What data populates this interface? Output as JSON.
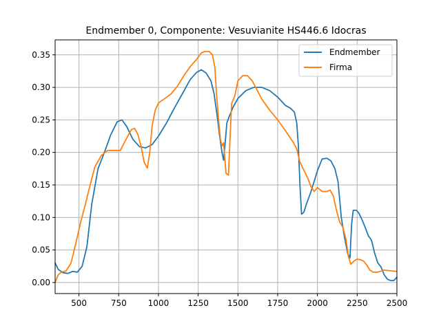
{
  "chart_data": {
    "type": "line",
    "title": "Endmember 0, Componente: Vesuvianite HS446.6  Idocras",
    "xlabel": "",
    "ylabel": "",
    "xlim": [
      350,
      2500
    ],
    "ylim": [
      -0.017,
      0.373
    ],
    "xticks": [
      500,
      750,
      1000,
      1250,
      1500,
      1750,
      2000,
      2250,
      2500
    ],
    "yticks": [
      0.0,
      0.05,
      0.1,
      0.15,
      0.2,
      0.25,
      0.3,
      0.35
    ],
    "xtick_labels": [
      "500",
      "750",
      "1000",
      "1250",
      "1500",
      "1750",
      "2000",
      "2250",
      "2500"
    ],
    "ytick_labels": [
      "0.00",
      "0.05",
      "0.10",
      "0.15",
      "0.20",
      "0.25",
      "0.30",
      "0.35"
    ],
    "grid": true,
    "legend_position": "top-right",
    "series": [
      {
        "name": "Endmember",
        "color": "#1f77b4",
        "x": [
          350,
          370,
          400,
          430,
          460,
          490,
          520,
          550,
          580,
          620,
          660,
          700,
          740,
          770,
          800,
          840,
          880,
          920,
          960,
          1000,
          1050,
          1100,
          1150,
          1200,
          1240,
          1270,
          1300,
          1330,
          1350,
          1370,
          1385,
          1400,
          1410,
          1420,
          1430,
          1445,
          1470,
          1500,
          1550,
          1600,
          1650,
          1700,
          1750,
          1800,
          1830,
          1855,
          1870,
          1880,
          1890,
          1900,
          1915,
          1930,
          1960,
          2000,
          2030,
          2060,
          2085,
          2110,
          2130,
          2150,
          2170,
          2190,
          2205,
          2215,
          2225,
          2245,
          2260,
          2280,
          2300,
          2320,
          2340,
          2360,
          2380,
          2400,
          2420,
          2440,
          2460,
          2480,
          2500
        ],
        "y": [
          0.03,
          0.02,
          0.015,
          0.014,
          0.017,
          0.016,
          0.025,
          0.055,
          0.12,
          0.175,
          0.2,
          0.227,
          0.247,
          0.25,
          0.24,
          0.22,
          0.209,
          0.207,
          0.212,
          0.225,
          0.245,
          0.268,
          0.29,
          0.312,
          0.323,
          0.327,
          0.322,
          0.31,
          0.29,
          0.255,
          0.225,
          0.2,
          0.188,
          0.215,
          0.245,
          0.255,
          0.27,
          0.283,
          0.295,
          0.3,
          0.3,
          0.295,
          0.285,
          0.272,
          0.268,
          0.262,
          0.245,
          0.21,
          0.15,
          0.105,
          0.108,
          0.12,
          0.14,
          0.172,
          0.19,
          0.191,
          0.187,
          0.175,
          0.155,
          0.1,
          0.07,
          0.045,
          0.038,
          0.09,
          0.111,
          0.111,
          0.107,
          0.097,
          0.085,
          0.072,
          0.065,
          0.045,
          0.03,
          0.024,
          0.012,
          0.005,
          0.003,
          0.003,
          0.008
        ]
      },
      {
        "name": "Firma",
        "color": "#ff7f0e",
        "x": [
          350,
          370,
          390,
          420,
          450,
          480,
          510,
          540,
          570,
          600,
          640,
          680,
          720,
          760,
          800,
          830,
          850,
          870,
          890,
          910,
          930,
          945,
          960,
          980,
          1000,
          1040,
          1080,
          1120,
          1160,
          1200,
          1240,
          1270,
          1290,
          1320,
          1340,
          1355,
          1365,
          1380,
          1390,
          1400,
          1410,
          1425,
          1440,
          1460,
          1480,
          1500,
          1530,
          1560,
          1590,
          1620,
          1650,
          1700,
          1750,
          1800,
          1830,
          1850,
          1870,
          1890,
          1910,
          1940,
          1960,
          1980,
          2000,
          2030,
          2060,
          2080,
          2100,
          2120,
          2140,
          2160,
          2180,
          2195,
          2210,
          2230,
          2250,
          2270,
          2290,
          2310,
          2330,
          2350,
          2380,
          2420,
          2460,
          2500
        ],
        "y": [
          0.0,
          0.012,
          0.016,
          0.018,
          0.03,
          0.06,
          0.092,
          0.12,
          0.15,
          0.178,
          0.195,
          0.203,
          0.203,
          0.203,
          0.222,
          0.235,
          0.237,
          0.228,
          0.21,
          0.185,
          0.176,
          0.2,
          0.24,
          0.265,
          0.276,
          0.283,
          0.29,
          0.302,
          0.318,
          0.332,
          0.343,
          0.353,
          0.355,
          0.355,
          0.35,
          0.33,
          0.29,
          0.245,
          0.22,
          0.21,
          0.215,
          0.168,
          0.165,
          0.275,
          0.287,
          0.31,
          0.318,
          0.318,
          0.31,
          0.296,
          0.282,
          0.265,
          0.25,
          0.233,
          0.222,
          0.215,
          0.205,
          0.185,
          0.175,
          0.16,
          0.147,
          0.14,
          0.146,
          0.14,
          0.14,
          0.142,
          0.133,
          0.111,
          0.093,
          0.085,
          0.066,
          0.04,
          0.028,
          0.033,
          0.036,
          0.035,
          0.033,
          0.027,
          0.019,
          0.016,
          0.016,
          0.019,
          0.018,
          0.017
        ]
      }
    ]
  }
}
